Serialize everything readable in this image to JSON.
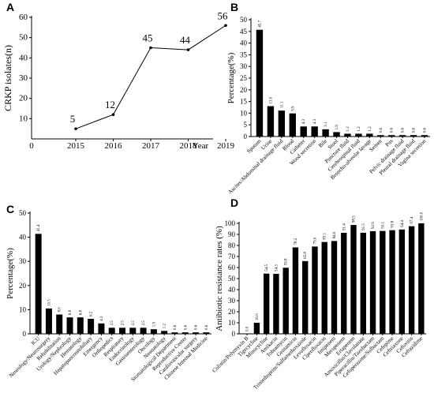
{
  "chart_data": [
    {
      "type": "line",
      "panel_label": "A",
      "ylabel": "CRKP isolates(n)",
      "xlabel": "Year",
      "x_origin_label": "0",
      "categories": [
        "2015",
        "2016",
        "2017",
        "2018",
        "2019"
      ],
      "values": [
        5,
        12,
        45,
        44,
        56
      ],
      "color": "#000000",
      "ylim": [
        0,
        60
      ],
      "yticks": [
        10,
        20,
        30,
        40,
        50,
        60
      ]
    },
    {
      "type": "bar",
      "panel_label": "B",
      "ylabel": "Percentage(%)",
      "color": "#000000",
      "categories": [
        "Sputum",
        "Urine",
        "Ascites/Abdominal drainage fluid",
        "Blood",
        "Catheter",
        "Wood secretion",
        "Bile",
        "Stool",
        "Puncture fluid",
        "Cerebrospinal fluid",
        "Broncho-alveolar lavage",
        "Semen",
        "Pus",
        "Pelvic drainage fluid",
        "Pleural drainage fluid",
        "Vagina secretion"
      ],
      "values": [
        45.7,
        13.0,
        11.1,
        9.9,
        4.3,
        4.3,
        3.1,
        1.9,
        1.2,
        1.2,
        1.2,
        0.6,
        0.6,
        0.6,
        0.6,
        0.6
      ],
      "value_labels": [
        "45.7",
        "13.0",
        "11.1",
        "9.9",
        "4.3",
        "4.3",
        "3.1",
        "1.9",
        "1.2",
        "1.2",
        "1.2",
        "0.6",
        "0.6",
        "0.6",
        "0.6",
        "0.6"
      ],
      "ylim": [
        0,
        50
      ],
      "yticks": [
        0,
        5,
        10,
        15,
        20,
        25,
        30,
        35,
        40,
        45,
        50
      ]
    },
    {
      "type": "bar",
      "panel_label": "C",
      "ylabel": "Percentage(%)",
      "color": "#000000",
      "categories": [
        "ICU",
        "Neurology/Neurosurgery",
        "Rehabilitation",
        "Urology/Nephrology",
        "Hematology",
        "Hepatopancreatobiliary",
        "Emergency",
        "Orthopedics",
        "Respiratory",
        "Endocrinology",
        "Gastroenterology",
        "Oncology",
        "Neonatology",
        "Stomatological Department",
        "Reproductive Center",
        "Cardiovascular surgery",
        "Chinese Internal Medicine"
      ],
      "values": [
        41.4,
        10.5,
        8.0,
        6.8,
        6.8,
        6.2,
        4.3,
        2.5,
        2.5,
        2.5,
        2.5,
        1.9,
        1.2,
        0.6,
        0.6,
        0.6,
        0.6
      ],
      "value_labels": [
        "41.4",
        "10.5",
        "8.0",
        "6.8",
        "6.8",
        "6.2",
        "4.3",
        "2.5",
        "2.5",
        "2.5",
        "2.5",
        "1.9",
        "1.2",
        "0.6",
        "0.6",
        "0.6",
        "0.6"
      ],
      "ylim": [
        0,
        50
      ],
      "yticks": [
        0,
        10,
        20,
        30,
        40,
        50
      ]
    },
    {
      "type": "bar",
      "panel_label": "D",
      "ylabel": "Antibiotic resistance rates (%)",
      "color": "#000000",
      "categories": [
        "Colistin/Polymyxin B",
        "Tigecycline",
        "Minocycline",
        "Amikacin",
        "Tobramycin",
        "Gentamicin",
        "Trimethoprim/Sulfamethoxazole",
        "Levofloxacin",
        "Ciprofloxacin",
        "Imipenem",
        "Meropenem",
        "Ertapenem",
        "Amoxicillin/Clavulanate",
        "Piperacillin/Tazobactam",
        "Cefoperazone/Sulbactam",
        "Cefepime",
        "Ceftriaxone",
        "Cefoxitin",
        "Ceftazidime"
      ],
      "values": [
        0.0,
        10.0,
        54.5,
        54.3,
        59.8,
        78.2,
        65.8,
        79.0,
        83.1,
        84.0,
        91.4,
        98.5,
        91.5,
        92.9,
        93.1,
        93.8,
        94.4,
        97.4,
        100.0
      ],
      "value_labels": [
        "0.0",
        "10.0",
        "54.5",
        "54.3",
        "59.8",
        "78.2",
        "65.8",
        "79.0",
        "83.1",
        "84.0",
        "91.4",
        "98.5",
        "91.5",
        "92.9",
        "93.1",
        "93.8",
        "94.4",
        "97.4",
        "100.0"
      ],
      "ylim": [
        0,
        100
      ],
      "yticks": [
        0,
        10,
        20,
        30,
        40,
        50,
        60,
        70,
        80,
        90,
        100
      ]
    }
  ]
}
